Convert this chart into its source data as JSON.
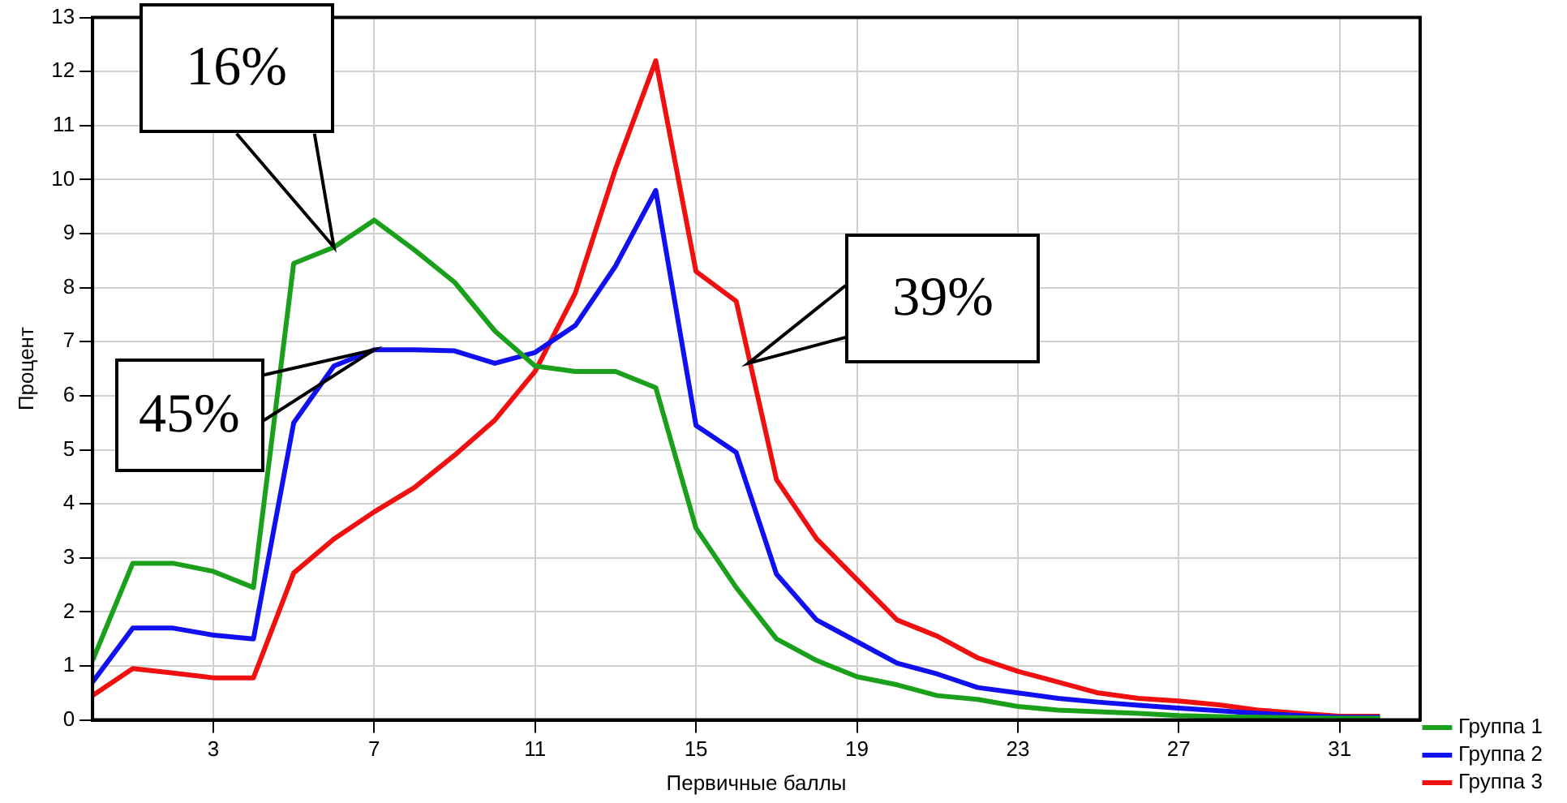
{
  "chart_data": {
    "type": "line",
    "xlabel": "Первичные баллы",
    "ylabel": "Процент",
    "x": [
      0,
      1,
      2,
      3,
      4,
      5,
      6,
      7,
      8,
      9,
      10,
      11,
      12,
      13,
      14,
      15,
      16,
      17,
      18,
      19,
      20,
      21,
      22,
      23,
      24,
      25,
      26,
      27,
      28,
      29,
      30,
      31,
      32
    ],
    "series": [
      {
        "name": "Группа 1",
        "color": "#1aa01a",
        "values": [
          1.1,
          2.9,
          2.9,
          2.75,
          2.45,
          8.45,
          8.75,
          9.25,
          8.7,
          8.1,
          7.2,
          6.55,
          6.45,
          6.45,
          6.15,
          3.55,
          2.45,
          1.5,
          1.1,
          0.8,
          0.65,
          0.45,
          0.38,
          0.25,
          0.18,
          0.15,
          0.12,
          0.08,
          0.06,
          0.05,
          0.04,
          0.03,
          0.03
        ]
      },
      {
        "name": "Группа 2",
        "color": "#1010f0",
        "values": [
          0.7,
          1.7,
          1.7,
          1.57,
          1.5,
          5.5,
          6.55,
          6.85,
          6.85,
          6.83,
          6.6,
          6.8,
          7.3,
          8.4,
          9.8,
          5.45,
          4.95,
          2.7,
          1.85,
          1.45,
          1.05,
          0.85,
          0.6,
          0.5,
          0.4,
          0.33,
          0.27,
          0.22,
          0.17,
          0.12,
          0.08,
          0.05,
          0.05
        ]
      },
      {
        "name": "Группа 3",
        "color": "#f01010",
        "values": [
          0.45,
          0.95,
          0.87,
          0.78,
          0.78,
          2.72,
          3.35,
          3.85,
          4.3,
          4.9,
          5.55,
          6.45,
          7.9,
          10.2,
          12.2,
          8.3,
          7.75,
          4.45,
          3.35,
          2.6,
          1.85,
          1.55,
          1.15,
          0.9,
          0.7,
          0.5,
          0.4,
          0.35,
          0.28,
          0.18,
          0.12,
          0.07,
          0.07
        ]
      }
    ],
    "xlim": [
      0,
      33
    ],
    "xticks": [
      3,
      7,
      11,
      15,
      19,
      23,
      27,
      31
    ],
    "ylim": [
      0,
      13
    ],
    "yticks": [
      0,
      1,
      2,
      3,
      4,
      5,
      6,
      7,
      8,
      9,
      10,
      11,
      12,
      13
    ],
    "grid": true,
    "legend": "bottom right",
    "marker": "none",
    "line_style": "solid",
    "annotations": [
      {
        "text": "16%",
        "x": 6,
        "y": 8.75
      },
      {
        "text": "45%",
        "x": 7,
        "y": 6.85
      },
      {
        "text": "39%",
        "x": 16.3,
        "y": 6.6
      }
    ]
  }
}
